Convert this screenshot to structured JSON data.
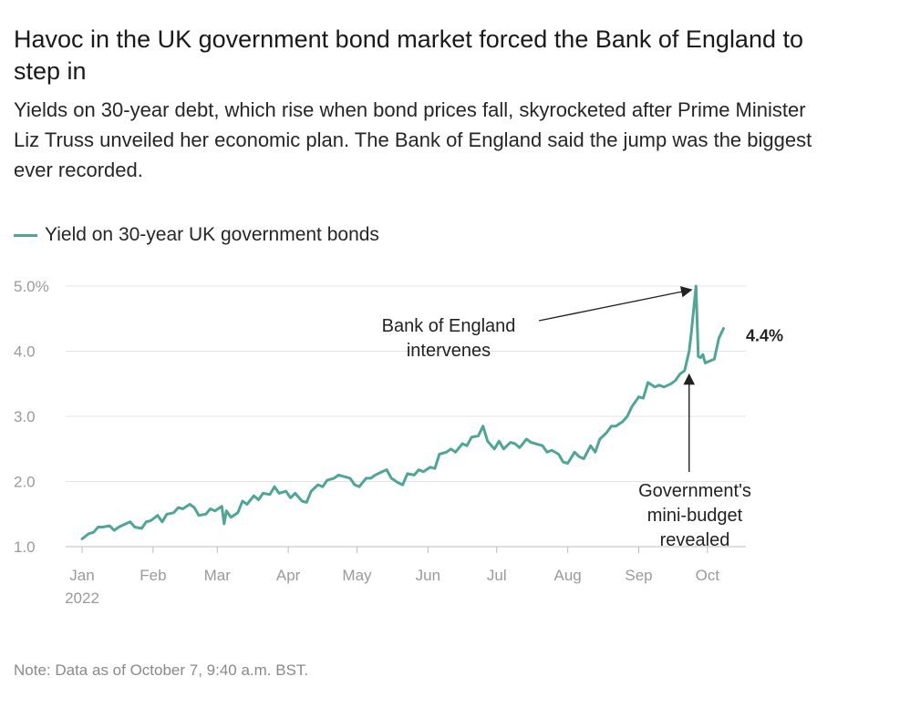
{
  "header": {
    "title": "Havoc in the UK government bond market forced the Bank of England to step in",
    "subtitle": "Yields on 30-year debt, which rise when bond prices fall, skyrocketed after Prime Minister Liz Truss unveiled her economic plan. The Bank of England said the jump was the biggest ever recorded."
  },
  "legend": {
    "label": "Yield on 30-year UK government bonds",
    "color": "#4fa596"
  },
  "note": "Note: Data as of October 7, 9:40 a.m. BST.",
  "chart_data": {
    "type": "line",
    "title": "Havoc in the UK government bond market forced the Bank of England to step in",
    "xlabel": "",
    "ylabel": "",
    "ylim": [
      1.0,
      5.0
    ],
    "xlim": [
      0,
      283
    ],
    "y_ticks": [
      1.0,
      2.0,
      3.0,
      4.0,
      5.0
    ],
    "y_tick_labels": [
      "1.0",
      "2.0",
      "3.0",
      "4.0",
      "5.0%"
    ],
    "x_ticks": [
      {
        "day": 0,
        "label": "Jan"
      },
      {
        "day": 31,
        "label": "Feb"
      },
      {
        "day": 59,
        "label": "Mar"
      },
      {
        "day": 90,
        "label": "Apr"
      },
      {
        "day": 120,
        "label": "May"
      },
      {
        "day": 151,
        "label": "Jun"
      },
      {
        "day": 181,
        "label": "Jul"
      },
      {
        "day": 212,
        "label": "Aug"
      },
      {
        "day": 243,
        "label": "Sep"
      },
      {
        "day": 273,
        "label": "Oct"
      }
    ],
    "x_year_label": "2022",
    "grid": true,
    "series": [
      {
        "name": "Yield on 30-year UK government bonds",
        "color": "#4fa596",
        "x": [
          0,
          3,
          5,
          7,
          9,
          12,
          14,
          16,
          19,
          21,
          23,
          26,
          28,
          30,
          33,
          35,
          37,
          40,
          42,
          44,
          47,
          49,
          51,
          54,
          56,
          58,
          61,
          62,
          63,
          65,
          68,
          70,
          72,
          75,
          77,
          79,
          82,
          84,
          86,
          89,
          91,
          93,
          96,
          98,
          100,
          103,
          105,
          107,
          110,
          112,
          114,
          117,
          119,
          121,
          124,
          126,
          128,
          131,
          133,
          135,
          138,
          140,
          142,
          145,
          147,
          149,
          152,
          154,
          156,
          159,
          161,
          163,
          166,
          168,
          170,
          173,
          175,
          177,
          180,
          182,
          184,
          187,
          189,
          191,
          194,
          196,
          198,
          201,
          203,
          205,
          208,
          210,
          212,
          215,
          217,
          219,
          222,
          224,
          226,
          229,
          231,
          233,
          236,
          238,
          240,
          243,
          245,
          247,
          250,
          252,
          254,
          257,
          259,
          261,
          263,
          265,
          266,
          267,
          268,
          269,
          270,
          271,
          272,
          274,
          276,
          278,
          280
        ],
        "y": [
          1.12,
          1.2,
          1.22,
          1.3,
          1.3,
          1.32,
          1.25,
          1.3,
          1.35,
          1.38,
          1.3,
          1.28,
          1.38,
          1.4,
          1.48,
          1.38,
          1.5,
          1.52,
          1.6,
          1.58,
          1.65,
          1.6,
          1.48,
          1.5,
          1.58,
          1.55,
          1.62,
          1.35,
          1.55,
          1.45,
          1.52,
          1.7,
          1.65,
          1.78,
          1.72,
          1.82,
          1.8,
          1.92,
          1.82,
          1.85,
          1.75,
          1.82,
          1.7,
          1.68,
          1.85,
          1.95,
          1.92,
          2.02,
          2.05,
          2.1,
          2.08,
          2.05,
          1.95,
          1.92,
          2.05,
          2.05,
          2.1,
          2.15,
          2.18,
          2.05,
          1.98,
          1.95,
          2.12,
          2.1,
          2.18,
          2.15,
          2.22,
          2.2,
          2.42,
          2.45,
          2.5,
          2.45,
          2.58,
          2.55,
          2.68,
          2.7,
          2.85,
          2.62,
          2.5,
          2.62,
          2.5,
          2.6,
          2.58,
          2.52,
          2.65,
          2.6,
          2.58,
          2.55,
          2.45,
          2.48,
          2.42,
          2.3,
          2.28,
          2.45,
          2.38,
          2.35,
          2.55,
          2.45,
          2.65,
          2.75,
          2.85,
          2.85,
          2.92,
          3.0,
          3.15,
          3.3,
          3.28,
          3.52,
          3.45,
          3.48,
          3.45,
          3.5,
          3.55,
          3.65,
          3.7,
          4.0,
          4.3,
          4.65,
          5.0,
          3.92,
          3.9,
          3.95,
          3.82,
          3.85,
          3.88,
          4.2,
          4.35
        ]
      }
    ],
    "annotations": [
      {
        "text_lines": [
          "Bank of England",
          "intervenes"
        ],
        "target": {
          "day": 268,
          "value": 5.0
        }
      },
      {
        "text_lines": [
          "Government's",
          "mini-budget",
          "revealed"
        ],
        "target": {
          "day": 265,
          "value": 3.7
        }
      }
    ],
    "end_label": "4.4%"
  }
}
